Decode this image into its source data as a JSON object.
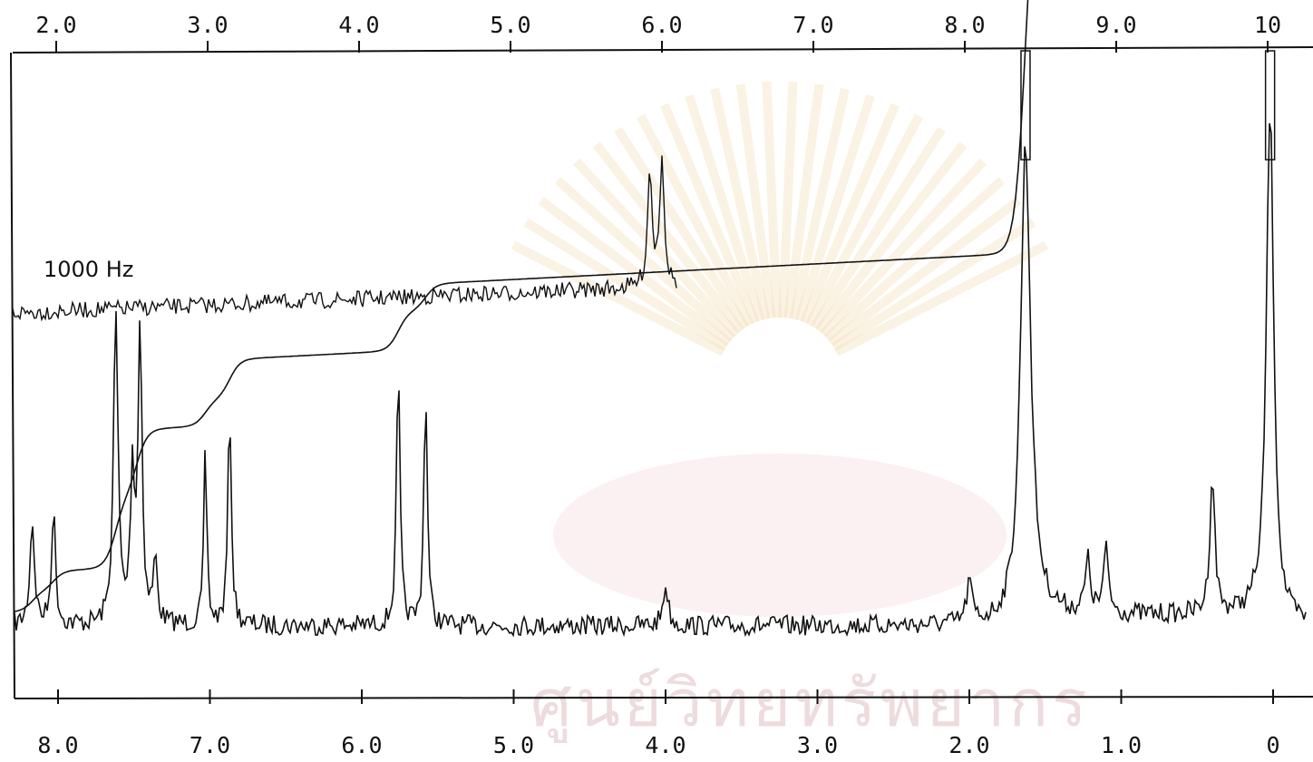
{
  "chart_data": {
    "type": "line",
    "top_axis": {
      "ticks": [
        "2.0",
        "3.0",
        "4.0",
        "5.0",
        "6.0",
        "7.0",
        "8.0",
        "9.0",
        "10"
      ],
      "values": [
        2.0,
        3.0,
        4.0,
        5.0,
        6.0,
        7.0,
        8.0,
        9.0,
        10.0
      ]
    },
    "bottom_axis": {
      "ticks": [
        "8.0",
        "7.0",
        "6.0",
        "5.0",
        "4.0",
        "3.0",
        "2.0",
        "1.0",
        "0"
      ],
      "values": [
        8.0,
        7.0,
        6.0,
        5.0,
        4.0,
        3.0,
        2.0,
        1.0,
        0.0
      ],
      "xlim": [
        8.3,
        -0.2
      ]
    },
    "annotations": [
      {
        "text": "1000 Hz"
      }
    ],
    "series": [
      {
        "role": "spectrum",
        "peaks": [
          {
            "ppm": 8.17,
            "height": 0.3,
            "width": 0.018
          },
          {
            "ppm": 8.03,
            "height": 0.33,
            "width": 0.016
          },
          {
            "ppm": 7.62,
            "height": 0.9,
            "width": 0.018
          },
          {
            "ppm": 7.51,
            "height": 0.42,
            "width": 0.016
          },
          {
            "ppm": 7.46,
            "height": 0.85,
            "width": 0.016
          },
          {
            "ppm": 7.36,
            "height": 0.18,
            "width": 0.016
          },
          {
            "ppm": 7.03,
            "height": 0.5,
            "width": 0.012
          },
          {
            "ppm": 6.87,
            "height": 0.62,
            "width": 0.014
          },
          {
            "ppm": 5.76,
            "height": 0.73,
            "width": 0.014
          },
          {
            "ppm": 5.58,
            "height": 0.68,
            "width": 0.014
          },
          {
            "ppm": 4.0,
            "height": 0.12,
            "width": 0.02
          },
          {
            "ppm": 2.0,
            "height": 0.12,
            "width": 0.02
          },
          {
            "ppm": 1.63,
            "height": 1.4,
            "width": 0.04
          },
          {
            "ppm": 1.22,
            "height": 0.15,
            "width": 0.02
          },
          {
            "ppm": 1.1,
            "height": 0.18,
            "width": 0.02
          },
          {
            "ppm": 0.4,
            "height": 0.4,
            "width": 0.02
          },
          {
            "ppm": 0.02,
            "height": 1.5,
            "width": 0.03
          }
        ],
        "baseline": 0.0
      },
      {
        "role": "integral",
        "steps": [
          {
            "ppm": 8.17,
            "rise": 0.03
          },
          {
            "ppm": 8.03,
            "rise": 0.03
          },
          {
            "ppm": 7.62,
            "rise": 0.11
          },
          {
            "ppm": 7.48,
            "rise": 0.1
          },
          {
            "ppm": 7.03,
            "rise": 0.04
          },
          {
            "ppm": 6.87,
            "rise": 0.06
          },
          {
            "ppm": 5.76,
            "rise": 0.06
          },
          {
            "ppm": 5.58,
            "rise": 0.04
          },
          {
            "ppm": 1.63,
            "rise": 0.64
          },
          {
            "ppm": 1.1,
            "rise": 0.03
          },
          {
            "ppm": 0.02,
            "rise": 0.04
          }
        ]
      },
      {
        "role": "offset-expansion",
        "label": "1000 Hz",
        "x_range": [
          2.0,
          6.1
        ],
        "peaks": [
          {
            "x": 5.92,
            "height": 0.55,
            "width": 0.018
          },
          {
            "x": 6.0,
            "height": 0.62,
            "width": 0.018
          }
        ]
      }
    ],
    "grid": false,
    "legend": "none"
  },
  "watermark": {
    "text": "ศูนย์วิทยทรัพยากร",
    "color": "#e8b7c4"
  }
}
